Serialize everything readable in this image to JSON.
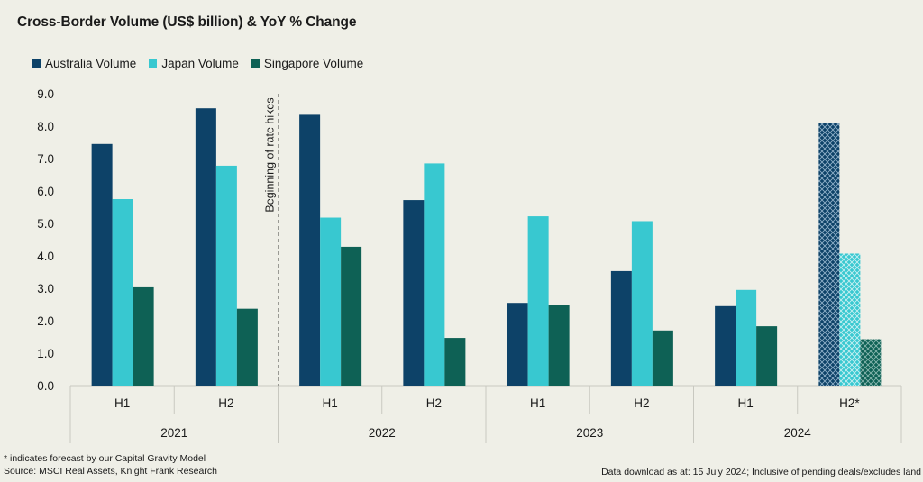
{
  "title": "Cross-Border Volume (US$ billion) & YoY % Change",
  "colors": {
    "australia": "#0d4268",
    "japan": "#38c8d0",
    "singapore": "#0e6155",
    "axis": "#c8c8c0",
    "background": "#efefe7"
  },
  "annotation": "Beginning of rate hikes",
  "footnote_forecast": "* indicates forecast by our Capital Gravity Model",
  "footnote_source": "Source: MSCI Real Assets, Knight Frank Research",
  "footnote_download": "Data download as at: 15 July 2024; Inclusive of pending deals/excludes land",
  "chart_data": {
    "type": "bar",
    "title": "Cross-Border Volume (US$ billion) & YoY % Change",
    "categories": [
      "H1",
      "H2",
      "H1",
      "H2",
      "H1",
      "H2",
      "H1",
      "H2*"
    ],
    "groups": [
      "2021",
      "2022",
      "2023",
      "2024"
    ],
    "yticks": [
      "0.0",
      "1.0",
      "2.0",
      "3.0",
      "4.0",
      "5.0",
      "6.0",
      "7.0",
      "8.0",
      "9.0"
    ],
    "ylim": [
      0,
      9
    ],
    "grid": false,
    "legend_position": "top-left",
    "forecast_category": "H2*",
    "annotation": {
      "text": "Beginning of rate hikes",
      "x_position": "between 2021 H2 and 2022 H1",
      "style": "dashed vertical line"
    },
    "series": [
      {
        "name": "Australia Volume",
        "values": [
          7.45,
          8.55,
          8.35,
          5.72,
          2.55,
          3.53,
          2.45,
          8.1
        ]
      },
      {
        "name": "Japan Volume",
        "values": [
          5.75,
          6.78,
          5.18,
          6.85,
          5.22,
          5.07,
          2.95,
          4.07
        ]
      },
      {
        "name": "Singapore Volume",
        "values": [
          3.03,
          2.37,
          4.28,
          1.47,
          2.48,
          1.7,
          1.83,
          1.43
        ]
      }
    ]
  }
}
